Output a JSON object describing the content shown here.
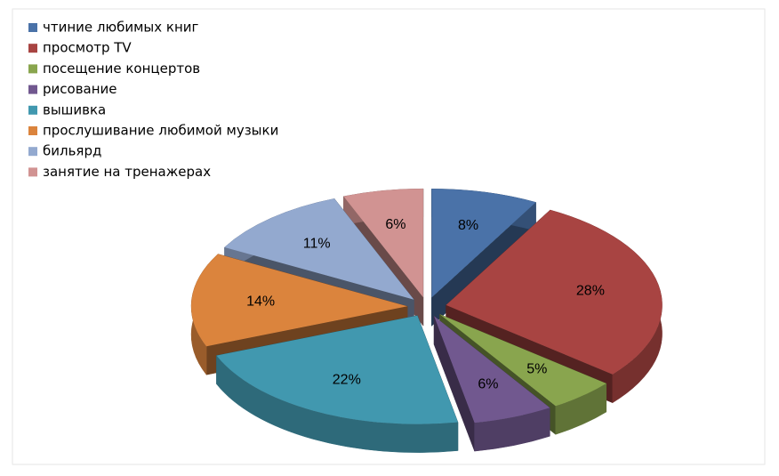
{
  "chart_data": {
    "type": "pie",
    "categories": [
      "чтиние любимых книг",
      "просмотр TV",
      "посещение концертов",
      "рисование",
      "вышивка",
      "прослушивание любимой музыки",
      "бильярд",
      "занятие на тренажерах"
    ],
    "values": [
      8,
      28,
      5,
      6,
      22,
      14,
      11,
      6
    ],
    "value_labels": [
      "8%",
      "28%",
      "5%",
      "6%",
      "22%",
      "14%",
      "11%",
      "6%"
    ],
    "colors": [
      "#4a72a8",
      "#a84442",
      "#89a54e",
      "#71588f",
      "#4198af",
      "#db843d",
      "#93a9cf",
      "#d19392"
    ],
    "legend": "top-left"
  }
}
